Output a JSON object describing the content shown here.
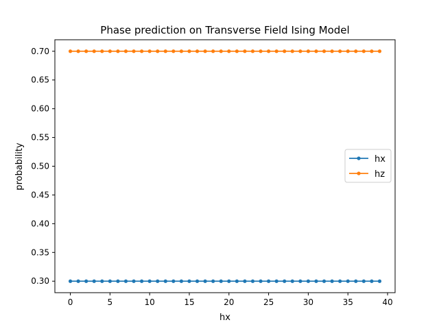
{
  "chart_data": {
    "type": "line",
    "title": "Phase prediction on Transverse Field Ising Model",
    "xlabel": "hx",
    "ylabel": "probability",
    "xlim": [
      -1.95,
      40.95
    ],
    "ylim": [
      0.28,
      0.72
    ],
    "xticks": [
      0,
      5,
      10,
      15,
      20,
      25,
      30,
      35,
      40
    ],
    "yticks": [
      0.3,
      0.35,
      0.4,
      0.45,
      0.5,
      0.55,
      0.6,
      0.65,
      0.7
    ],
    "grid": false,
    "legend_position": "center-right",
    "x": [
      0,
      1,
      2,
      3,
      4,
      5,
      6,
      7,
      8,
      9,
      10,
      11,
      12,
      13,
      14,
      15,
      16,
      17,
      18,
      19,
      20,
      21,
      22,
      23,
      24,
      25,
      26,
      27,
      28,
      29,
      30,
      31,
      32,
      33,
      34,
      35,
      36,
      37,
      38,
      39
    ],
    "series": [
      {
        "name": "hx",
        "color": "#1f77b4",
        "values": [
          0.3,
          0.3,
          0.3,
          0.3,
          0.3,
          0.3,
          0.3,
          0.3,
          0.3,
          0.3,
          0.3,
          0.3,
          0.3,
          0.3,
          0.3,
          0.3,
          0.3,
          0.3,
          0.3,
          0.3,
          0.3,
          0.3,
          0.3,
          0.3,
          0.3,
          0.3,
          0.3,
          0.3,
          0.3,
          0.3,
          0.3,
          0.3,
          0.3,
          0.3,
          0.3,
          0.3,
          0.3,
          0.3,
          0.3,
          0.3
        ]
      },
      {
        "name": "hz",
        "color": "#ff7f0e",
        "values": [
          0.7,
          0.7,
          0.7,
          0.7,
          0.7,
          0.7,
          0.7,
          0.7,
          0.7,
          0.7,
          0.7,
          0.7,
          0.7,
          0.7,
          0.7,
          0.7,
          0.7,
          0.7,
          0.7,
          0.7,
          0.7,
          0.7,
          0.7,
          0.7,
          0.7,
          0.7,
          0.7,
          0.7,
          0.7,
          0.7,
          0.7,
          0.7,
          0.7,
          0.7,
          0.7,
          0.7,
          0.7,
          0.7,
          0.7,
          0.7
        ]
      }
    ]
  }
}
